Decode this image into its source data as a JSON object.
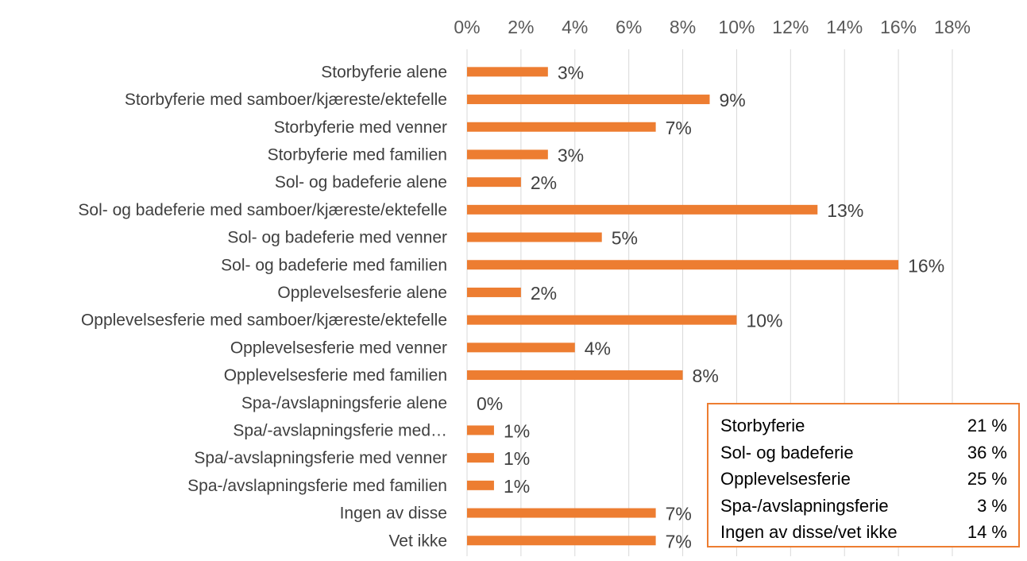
{
  "colors": {
    "bar": "#ED7D31",
    "grid": "#D9D9D9",
    "text": "#404040",
    "box_border": "#ED7D31"
  },
  "chart_data": {
    "type": "bar",
    "orientation": "horizontal",
    "categories": [
      "Storbyferie alene",
      "Storbyferie med samboer/kjæreste/ektefelle",
      "Storbyferie med venner",
      "Storbyferie med familien",
      "Sol- og badeferie alene",
      "Sol- og badeferie med samboer/kjæreste/ektefelle",
      "Sol- og badeferie med venner",
      "Sol- og badeferie med familien",
      "Opplevelsesferie alene",
      "Opplevelsesferie med samboer/kjæreste/ektefelle",
      "Opplevelsesferie med venner",
      "Opplevelsesferie med familien",
      "Spa-/avslapningsferie alene",
      "Spa/-avslapningsferie med…",
      "Spa/-avslapningsferie med venner",
      "Spa-/avslapningsferie med familien",
      "Ingen av disse",
      "Vet ikke"
    ],
    "values": [
      3,
      9,
      7,
      3,
      2,
      13,
      5,
      16,
      2,
      10,
      4,
      8,
      0,
      1,
      1,
      1,
      7,
      7
    ],
    "data_labels": [
      "3%",
      "9%",
      "7%",
      "3%",
      "2%",
      "13%",
      "5%",
      "16%",
      "2%",
      "10%",
      "4%",
      "8%",
      "0%",
      "1%",
      "1%",
      "1%",
      "7%",
      "7%"
    ],
    "xlim": [
      0,
      18
    ],
    "x_ticks": [
      "0%",
      "2%",
      "4%",
      "6%",
      "8%",
      "10%",
      "12%",
      "14%",
      "16%",
      "18%"
    ],
    "x_axis_position": "top",
    "grid": true,
    "legend": "none"
  },
  "summary_box": {
    "rows": [
      {
        "label": "Storbyferie",
        "value": "21 %"
      },
      {
        "label": "Sol- og badeferie",
        "value": "36 %"
      },
      {
        "label": "Opplevelsesferie",
        "value": "25 %"
      },
      {
        "label": "Spa-/avslapningsferie",
        "value": "3 %"
      },
      {
        "label": "Ingen av disse/vet ikke",
        "value": "14 %"
      }
    ]
  }
}
